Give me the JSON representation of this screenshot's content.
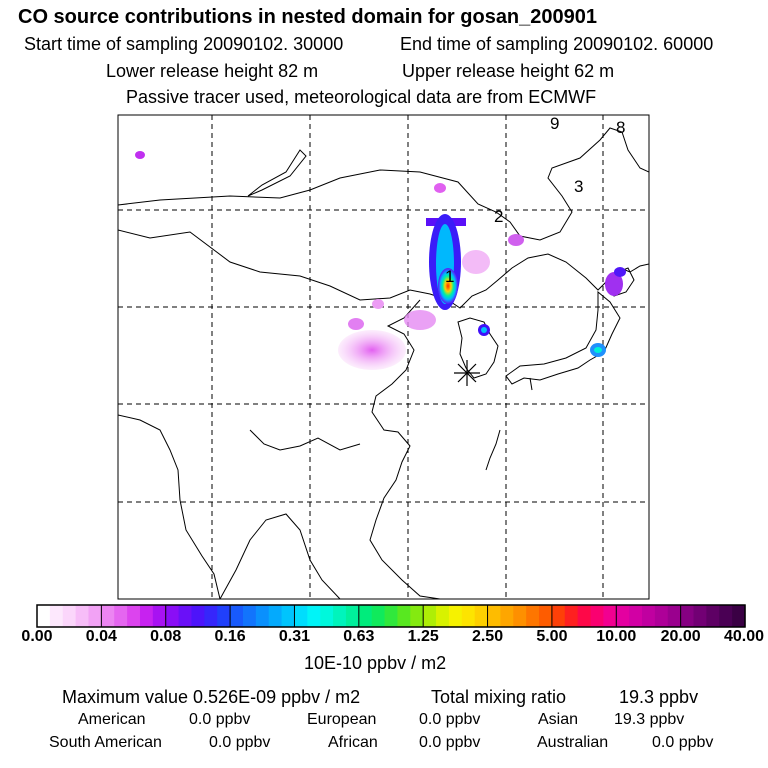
{
  "header": {
    "title": "CO  source contributions in nested domain for gosan_200901",
    "start_label": "Start time of sampling 20090102. 30000",
    "end_label": "End time of sampling 20090102. 60000",
    "lower_label": "Lower release height   82 m",
    "upper_label": "Upper release height   62 m",
    "tracer_note": "Passive tracer used, meteorological data are from ECMWF"
  },
  "map": {
    "trajectory_markers": [
      "1",
      "2",
      "3",
      "8",
      "9"
    ],
    "receptor_symbol": "gosan-receptor"
  },
  "colorbar": {
    "colors": [
      "#ffffff",
      "#fde8fd",
      "#fbd6fb",
      "#f7bdf8",
      "#f2a2f5",
      "#ec85f2",
      "#e566f0",
      "#dc44ee",
      "#c722f0",
      "#a812f2",
      "#8a0ef6",
      "#6a10f8",
      "#4d14fa",
      "#3626fb",
      "#2040fb",
      "#185afc",
      "#1274fc",
      "#0a90fd",
      "#04aafd",
      "#00c4fd",
      "#00ddfd",
      "#00f4f8",
      "#00f8dc",
      "#00f4bc",
      "#00f09c",
      "#00ec7c",
      "#10ea5c",
      "#30e83c",
      "#58e820",
      "#84ea10",
      "#aeee06",
      "#d8f200",
      "#f6f200",
      "#fde400",
      "#fed000",
      "#febc00",
      "#fea600",
      "#fe9000",
      "#fe7600",
      "#fe5c00",
      "#fe4008",
      "#fe2020",
      "#fe0848",
      "#fa0070",
      "#f20090",
      "#e400a0",
      "#d200a4",
      "#c000a0",
      "#ae0098",
      "#9a008e",
      "#860082",
      "#720074",
      "#5e0064",
      "#4a0054",
      "#3a0044"
    ],
    "tick_labels": [
      "0.00",
      "0.04",
      "0.08",
      "0.16",
      "0.31",
      "0.63",
      "1.25",
      "2.50",
      "5.00",
      "10.00",
      "20.00",
      "40.00"
    ],
    "units": "10E-10 ppbv / m2"
  },
  "summary": {
    "max_value": "Maximum value  0.526E-09 ppbv / m2",
    "total_label": "Total mixing ratio",
    "total_value": "19.3 ppbv",
    "regions": [
      {
        "name": "American",
        "value": "0.0 ppbv"
      },
      {
        "name": "European",
        "value": "0.0 ppbv"
      },
      {
        "name": "Asian",
        "value": "19.3 ppbv"
      },
      {
        "name": "South American",
        "value": "0.0 ppbv"
      },
      {
        "name": "African",
        "value": "0.0 ppbv"
      },
      {
        "name": "Australian",
        "value": "0.0 ppbv"
      }
    ]
  }
}
